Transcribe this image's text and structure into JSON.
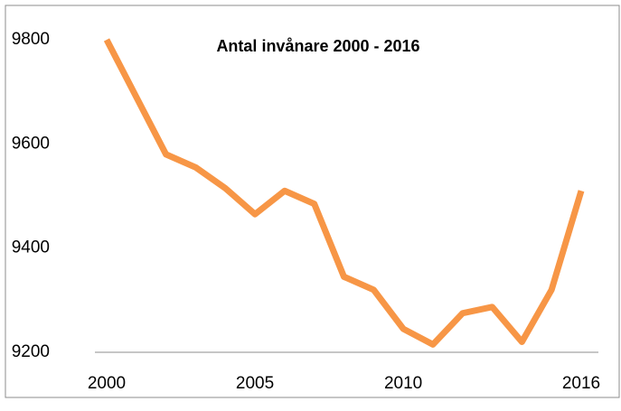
{
  "chart_data": {
    "type": "line",
    "title": "Antal invånare 2000 - 2016",
    "x": [
      2000,
      2001,
      2002,
      2003,
      2004,
      2005,
      2006,
      2007,
      2008,
      2009,
      2010,
      2011,
      2012,
      2013,
      2014,
      2015,
      2016
    ],
    "values": [
      9800,
      9690,
      9580,
      9555,
      9515,
      9465,
      9510,
      9485,
      9345,
      9320,
      9245,
      9215,
      9275,
      9287,
      9220,
      9320,
      9510
    ],
    "color": "#f79646",
    "xlim": [
      2000,
      2016
    ],
    "xticks": [
      2000,
      2005,
      2010,
      2016
    ],
    "ylim": [
      9200,
      9800
    ],
    "yticks": [
      9200,
      9400,
      9600,
      9800
    ],
    "grid": false
  }
}
